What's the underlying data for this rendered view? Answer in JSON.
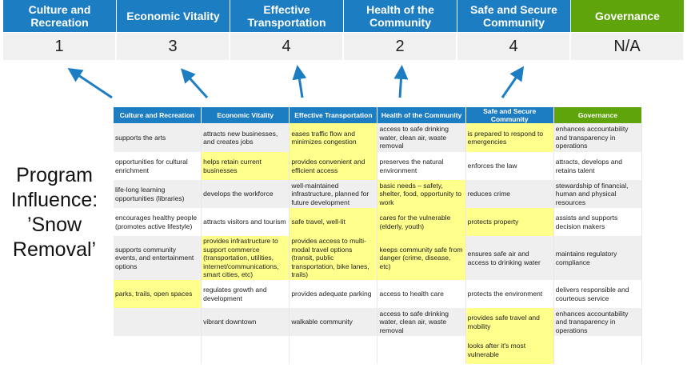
{
  "summary": {
    "columns": [
      {
        "label": "Culture and Recreation",
        "score": "1"
      },
      {
        "label": "Economic Vitality",
        "score": "3"
      },
      {
        "label": "Effective Transportation",
        "score": "4"
      },
      {
        "label": "Health of the Community",
        "score": "2"
      },
      {
        "label": "Safe and Secure Community",
        "score": "4"
      },
      {
        "label": "Governance",
        "score": "N/A"
      }
    ]
  },
  "colors": {
    "header_blue": "#1d7dc2",
    "governance_green": "#5ea40a",
    "highlight": "#ffff8c",
    "arrow": "#1d7dc2"
  },
  "side_label": {
    "line1": "Program",
    "line2": "Influence:",
    "line3": "’Snow",
    "line4": "Removal’"
  },
  "table": {
    "headers": [
      "Culture and Recreation",
      "Economic Vitality",
      "Effective Transportation",
      "Health of the Community",
      "Safe and Secure Community",
      "Governance"
    ],
    "rows": [
      [
        {
          "t": "supports the arts"
        },
        {
          "t": "attracts new businesses, and creates jobs"
        },
        {
          "t": "eases traffic flow and minimizes congestion",
          "hl": true
        },
        {
          "t": "access to safe drinking water, clean air, waste removal"
        },
        {
          "t": "is prepared to respond to emergencies",
          "hl": true
        },
        {
          "t": "enhances accountability and transparency in operations"
        }
      ],
      [
        {
          "t": "opportunities for cultural enrichment"
        },
        {
          "t": "helps retain current businesses",
          "hl": true
        },
        {
          "t": "provides convenient and efficient access",
          "hl": true
        },
        {
          "t": "preserves the natural environment"
        },
        {
          "t": "enforces the law"
        },
        {
          "t": "attracts, develops and retains talent"
        }
      ],
      [
        {
          "t": "life-long learning opportunities (libraries)"
        },
        {
          "t": "develops the workforce"
        },
        {
          "t": "well-maintained infrastructure, planned for future development"
        },
        {
          "t": "basic needs – safety, shelter, food, opportunity to work",
          "hl": true
        },
        {
          "t": "reduces crime"
        },
        {
          "t": "stewardship of financial, human and physical resources"
        }
      ],
      [
        {
          "t": "encourages healthy people (promotes active lifestyle)"
        },
        {
          "t": "attracts visitors and tourism"
        },
        {
          "t": "safe travel, well-lit",
          "hl": true
        },
        {
          "t": "cares for the vulnerable (elderly, youth)",
          "hl": true
        },
        {
          "t": "protects property",
          "hl": true
        },
        {
          "t": "assists and supports decision makers"
        }
      ],
      [
        {
          "t": "supports community events, and entertainment options"
        },
        {
          "t": "provides infrastructure to support commerce (transportation, utilities, internet/communications, smart cities, etc)",
          "hl": true
        },
        {
          "t": "provides access to multi-modal travel options (transit, public transportation, bike lanes, trails)",
          "hl": true
        },
        {
          "t": "keeps community safe from danger (crime, disease, etc)",
          "hl": true
        },
        {
          "t": "ensures safe air and access to drinking water"
        },
        {
          "t": "maintains regulatory compliance"
        }
      ],
      [
        {
          "t": "parks, trails, open spaces",
          "hl": true
        },
        {
          "t": "regulates growth and development"
        },
        {
          "t": "provides adequate parking"
        },
        {
          "t": "access to health care"
        },
        {
          "t": "protects the environment"
        },
        {
          "t": "delivers responsible and courteous service"
        }
      ],
      [
        {
          "t": ""
        },
        {
          "t": "vibrant downtown"
        },
        {
          "t": "walkable community"
        },
        {
          "t": "access to safe drinking water, clean air, waste removal"
        },
        {
          "t": "provides safe travel and mobility",
          "hl": true
        },
        {
          "t": "enhances accountability and transparency in operations"
        }
      ],
      [
        {
          "t": ""
        },
        {
          "t": ""
        },
        {
          "t": ""
        },
        {
          "t": ""
        },
        {
          "t": "looks after it's most vulnerable",
          "hl": true
        },
        {
          "t": ""
        }
      ]
    ]
  }
}
